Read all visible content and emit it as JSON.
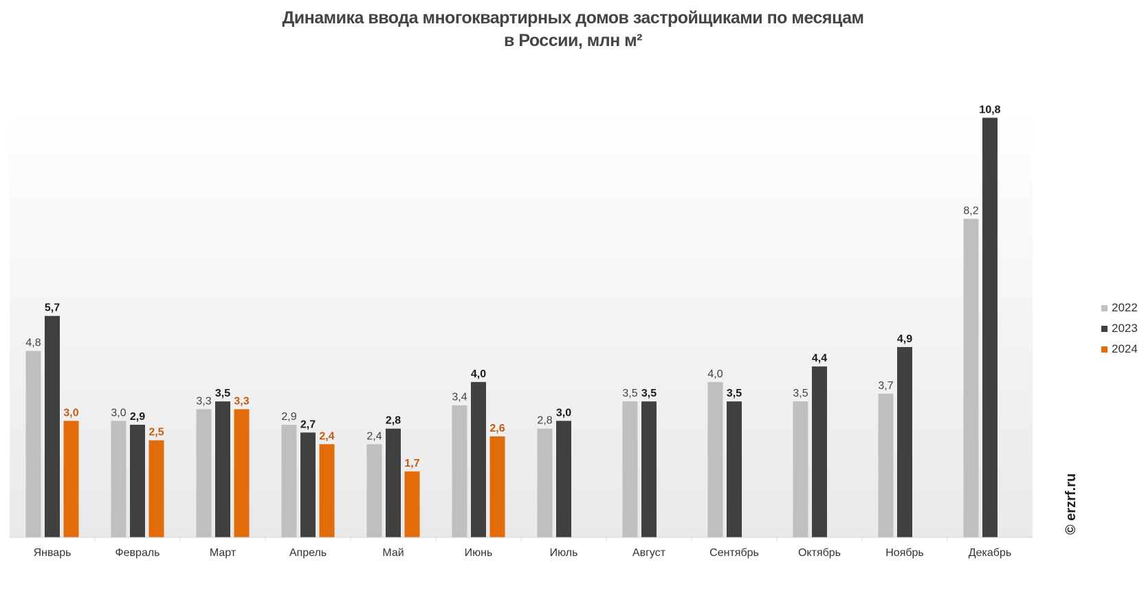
{
  "watermark": "© erzrf.ru",
  "chart_data": {
    "type": "bar",
    "title": [
      "Динамика ввода многоквартирных домов застройщиками по месяцам",
      "в России, млн м²"
    ],
    "categories": [
      "Январь",
      "Февраль",
      "Март",
      "Апрель",
      "Май",
      "Июнь",
      "Июль",
      "Август",
      "Сентябрь",
      "Октябрь",
      "Ноябрь",
      "Декабрь"
    ],
    "series": [
      {
        "name": "2022",
        "color": "#bfbfbf",
        "label_color": "#404040",
        "label_bold": false,
        "values": [
          4.8,
          3.0,
          3.3,
          2.9,
          2.4,
          3.4,
          2.8,
          3.5,
          4.0,
          3.5,
          3.7,
          8.2
        ],
        "labels": [
          "4,8",
          "3,0",
          "3,3",
          "2,9",
          "2,4",
          "3,4",
          "2,8",
          "3,5",
          "4,0",
          "3,5",
          "3,7",
          "8,2"
        ]
      },
      {
        "name": "2023",
        "color": "#404040",
        "label_color": "#1a1a1a",
        "label_bold": true,
        "values": [
          5.7,
          2.9,
          3.5,
          2.7,
          2.8,
          4.0,
          3.0,
          3.5,
          3.5,
          4.4,
          4.9,
          10.8
        ],
        "labels": [
          "5,7",
          "2,9",
          "3,5",
          "2,7",
          "2,8",
          "4,0",
          "3,0",
          "3,5",
          "3,5",
          "4,4",
          "4,9",
          "10,8"
        ]
      },
      {
        "name": "2024",
        "color": "#e36c0a",
        "label_color": "#c55a11",
        "label_bold": true,
        "values": [
          3.0,
          2.5,
          3.3,
          2.4,
          1.7,
          2.6,
          null,
          null,
          null,
          null,
          null,
          null
        ],
        "labels": [
          "3,0",
          "2,5",
          "3,3",
          "2,4",
          "1,7",
          "2,6",
          null,
          null,
          null,
          null,
          null,
          null
        ]
      }
    ],
    "ylim": [
      0,
      11
    ],
    "grid": false,
    "legend_position": "right"
  }
}
